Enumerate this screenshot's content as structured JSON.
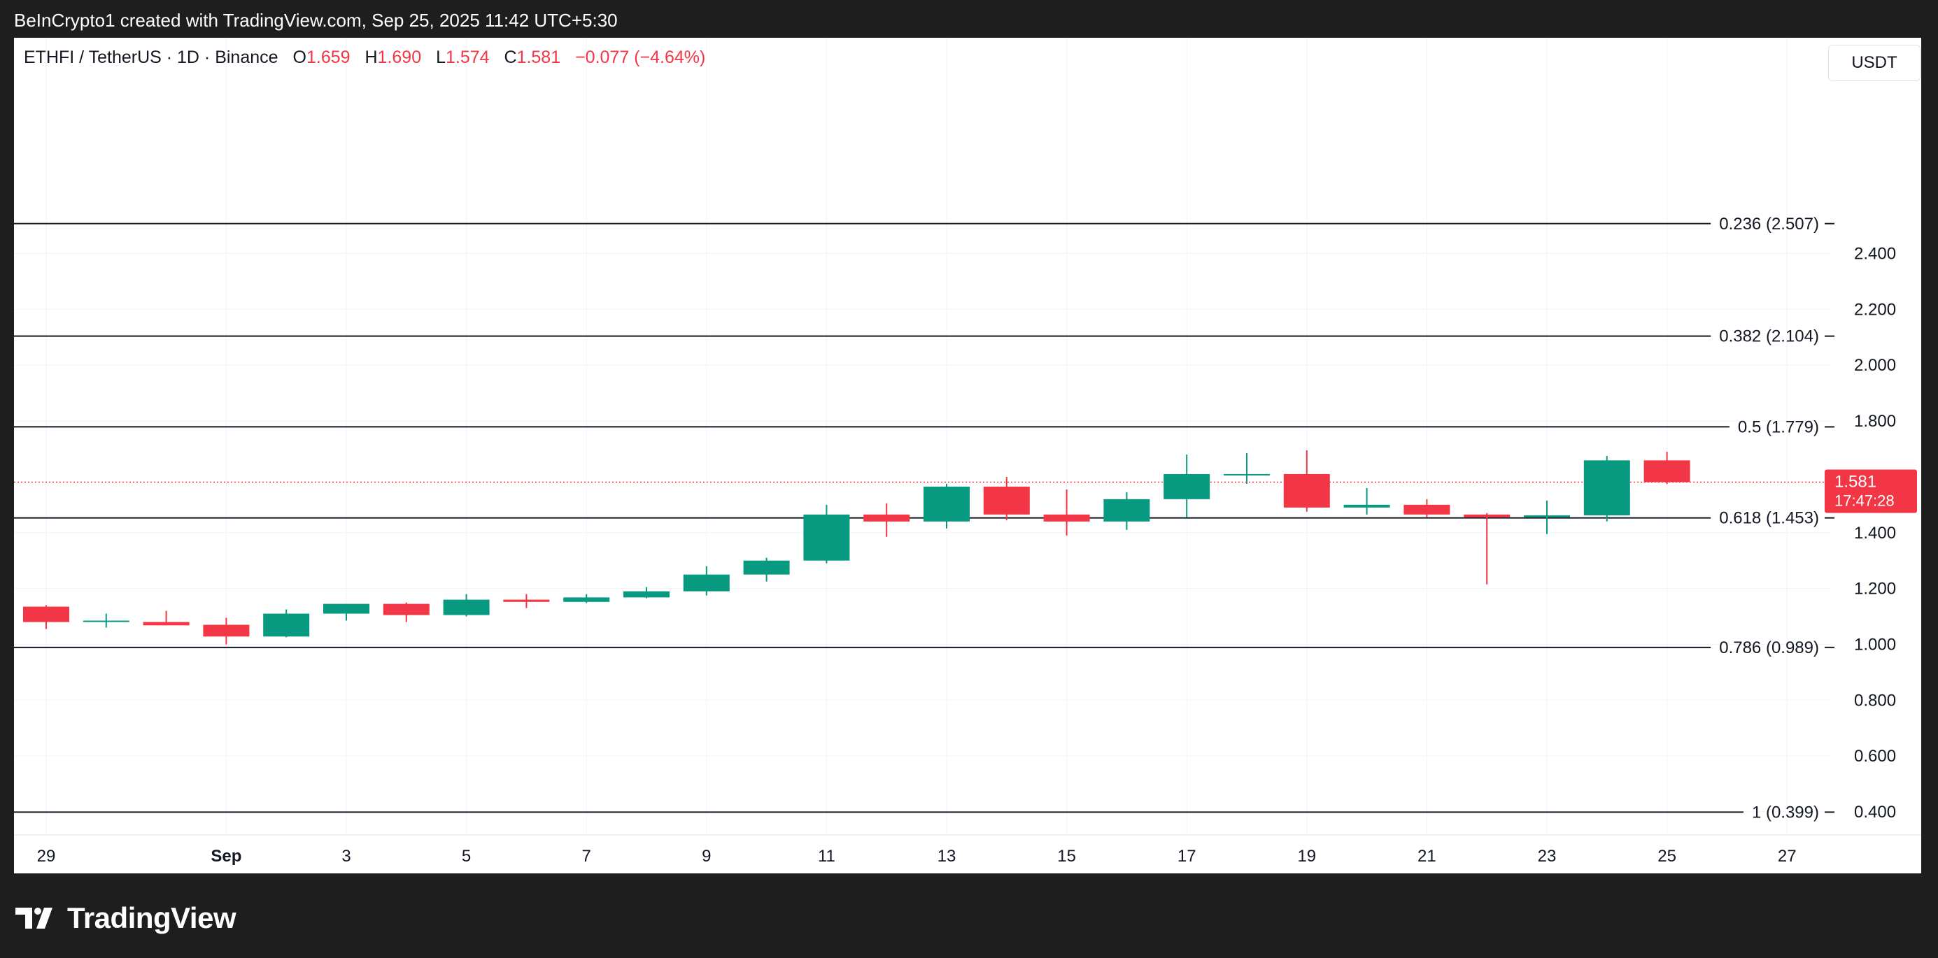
{
  "header": {
    "attribution": "BeInCrypto1 created with TradingView.com, Sep 25, 2025 11:42 UTC+5:30"
  },
  "legend": {
    "symbol": "ETHFI / TetherUS · 1D · Binance",
    "o_label": "O",
    "o_value": "1.659",
    "h_label": "H",
    "h_value": "1.690",
    "l_label": "L",
    "l_value": "1.574",
    "c_label": "C",
    "c_value": "1.581",
    "change": "−0.077 (−4.64%)"
  },
  "currency_button": "USDT",
  "price_marker": {
    "price": "1.581",
    "countdown": "17:47:28"
  },
  "footer": {
    "brand": "TradingView"
  },
  "colors": {
    "up": "#089981",
    "down": "#f23645",
    "fib_line": "#131722",
    "grid": "#f0f3fa"
  },
  "chart_data": {
    "type": "candlestick",
    "title": "",
    "ylim": [
      0.3,
      2.6
    ],
    "y_ticks": [
      {
        "value": 0.4,
        "label": "0.400"
      },
      {
        "value": 0.6,
        "label": "0.600"
      },
      {
        "value": 0.8,
        "label": "0.800"
      },
      {
        "value": 1.0,
        "label": "1.000"
      },
      {
        "value": 1.2,
        "label": "1.200"
      },
      {
        "value": 1.4,
        "label": "1.400"
      },
      {
        "value": 1.8,
        "label": "1.800"
      },
      {
        "value": 2.0,
        "label": "2.000"
      },
      {
        "value": 2.2,
        "label": "2.200"
      },
      {
        "value": 2.4,
        "label": "2.400"
      }
    ],
    "x_ticks": [
      {
        "date": "2025-08-29",
        "label": "29"
      },
      {
        "date": "2025-09-01",
        "label": "Sep",
        "bold": true
      },
      {
        "date": "2025-09-03",
        "label": "3"
      },
      {
        "date": "2025-09-05",
        "label": "5"
      },
      {
        "date": "2025-09-07",
        "label": "7"
      },
      {
        "date": "2025-09-09",
        "label": "9"
      },
      {
        "date": "2025-09-11",
        "label": "11"
      },
      {
        "date": "2025-09-13",
        "label": "13"
      },
      {
        "date": "2025-09-15",
        "label": "15"
      },
      {
        "date": "2025-09-17",
        "label": "17"
      },
      {
        "date": "2025-09-19",
        "label": "19"
      },
      {
        "date": "2025-09-21",
        "label": "21"
      },
      {
        "date": "2025-09-23",
        "label": "23"
      },
      {
        "date": "2025-09-25",
        "label": "25"
      },
      {
        "date": "2025-09-27",
        "label": "27"
      }
    ],
    "fib_levels": [
      {
        "price": 2.507,
        "label": "0.236 (2.507)"
      },
      {
        "price": 2.104,
        "label": "0.382 (2.104)"
      },
      {
        "price": 1.779,
        "label": "0.5 (1.779)"
      },
      {
        "price": 1.453,
        "label": "0.618 (1.453)"
      },
      {
        "price": 0.989,
        "label": "0.786 (0.989)"
      },
      {
        "price": 0.399,
        "label": "1 (0.399)"
      }
    ],
    "last_price": 1.581,
    "candles": [
      {
        "date": "2025-08-29",
        "open": 1.135,
        "high": 1.14,
        "low": 1.055,
        "close": 1.08
      },
      {
        "date": "2025-08-30",
        "open": 1.08,
        "high": 1.11,
        "low": 1.06,
        "close": 1.085
      },
      {
        "date": "2025-08-31",
        "open": 1.08,
        "high": 1.12,
        "low": 1.07,
        "close": 1.068
      },
      {
        "date": "2025-09-01",
        "open": 1.07,
        "high": 1.095,
        "low": 1.0,
        "close": 1.028
      },
      {
        "date": "2025-09-02",
        "open": 1.028,
        "high": 1.125,
        "low": 1.025,
        "close": 1.11
      },
      {
        "date": "2025-09-03",
        "open": 1.11,
        "high": 1.145,
        "low": 1.085,
        "close": 1.145
      },
      {
        "date": "2025-09-04",
        "open": 1.145,
        "high": 1.15,
        "low": 1.08,
        "close": 1.105
      },
      {
        "date": "2025-09-05",
        "open": 1.105,
        "high": 1.18,
        "low": 1.1,
        "close": 1.16
      },
      {
        "date": "2025-09-06",
        "open": 1.16,
        "high": 1.18,
        "low": 1.13,
        "close": 1.152
      },
      {
        "date": "2025-09-07",
        "open": 1.152,
        "high": 1.18,
        "low": 1.148,
        "close": 1.168
      },
      {
        "date": "2025-09-08",
        "open": 1.168,
        "high": 1.205,
        "low": 1.165,
        "close": 1.19
      },
      {
        "date": "2025-09-09",
        "open": 1.19,
        "high": 1.28,
        "low": 1.175,
        "close": 1.25
      },
      {
        "date": "2025-09-10",
        "open": 1.25,
        "high": 1.31,
        "low": 1.225,
        "close": 1.3
      },
      {
        "date": "2025-09-11",
        "open": 1.3,
        "high": 1.5,
        "low": 1.29,
        "close": 1.465
      },
      {
        "date": "2025-09-12",
        "open": 1.465,
        "high": 1.505,
        "low": 1.385,
        "close": 1.44
      },
      {
        "date": "2025-09-13",
        "open": 1.44,
        "high": 1.575,
        "low": 1.415,
        "close": 1.565
      },
      {
        "date": "2025-09-14",
        "open": 1.565,
        "high": 1.6,
        "low": 1.445,
        "close": 1.465
      },
      {
        "date": "2025-09-15",
        "open": 1.465,
        "high": 1.555,
        "low": 1.39,
        "close": 1.44
      },
      {
        "date": "2025-09-16",
        "open": 1.44,
        "high": 1.545,
        "low": 1.41,
        "close": 1.52
      },
      {
        "date": "2025-09-17",
        "open": 1.52,
        "high": 1.68,
        "low": 1.455,
        "close": 1.61
      },
      {
        "date": "2025-09-18",
        "open": 1.605,
        "high": 1.685,
        "low": 1.575,
        "close": 1.61
      },
      {
        "date": "2025-09-19",
        "open": 1.61,
        "high": 1.695,
        "low": 1.475,
        "close": 1.49
      },
      {
        "date": "2025-09-20",
        "open": 1.49,
        "high": 1.56,
        "low": 1.465,
        "close": 1.5
      },
      {
        "date": "2025-09-21",
        "open": 1.5,
        "high": 1.52,
        "low": 1.455,
        "close": 1.465
      },
      {
        "date": "2025-09-22",
        "open": 1.465,
        "high": 1.47,
        "low": 1.215,
        "close": 1.455
      },
      {
        "date": "2025-09-23",
        "open": 1.455,
        "high": 1.515,
        "low": 1.395,
        "close": 1.462
      },
      {
        "date": "2025-09-24",
        "open": 1.462,
        "high": 1.675,
        "low": 1.44,
        "close": 1.659
      },
      {
        "date": "2025-09-25",
        "open": 1.659,
        "high": 1.69,
        "low": 1.574,
        "close": 1.581
      }
    ]
  }
}
